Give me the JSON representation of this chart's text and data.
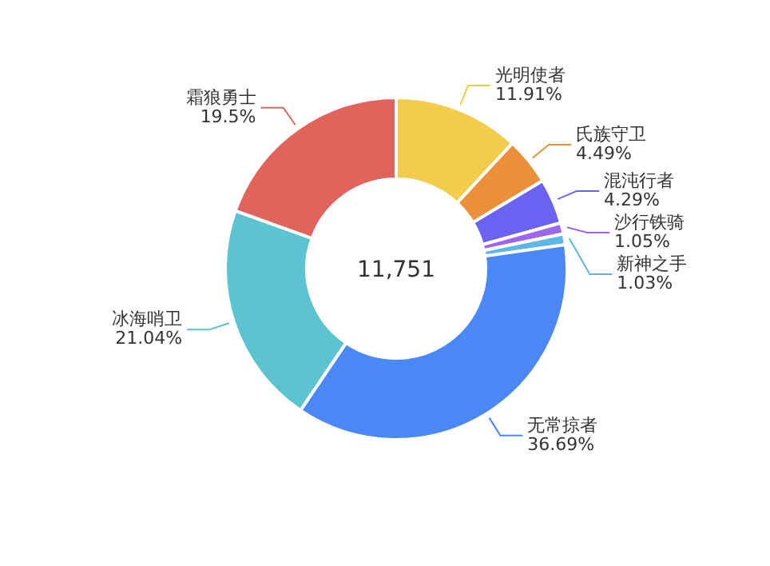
{
  "chart_data": {
    "type": "donut",
    "categories": [
      "光明使者",
      "氏族守卫",
      "混沌行者",
      "沙行铁骑",
      "新神之手",
      "无常掠者",
      "冰海哨卫",
      "霜狼勇士"
    ],
    "values": [
      11.91,
      4.49,
      4.29,
      1.05,
      1.03,
      36.69,
      21.04,
      19.5
    ],
    "value_labels": [
      "11.91%",
      "4.49%",
      "4.29%",
      "1.05%",
      "1.03%",
      "36.69%",
      "21.04%",
      "19.5%"
    ],
    "colors": [
      "#f2cc4a",
      "#ea9038",
      "#6b62f2",
      "#9e66ee",
      "#5cb6e6",
      "#4a88f6",
      "#5bc4d0",
      "#e2625c"
    ],
    "annotations": [
      "11,751"
    ]
  }
}
